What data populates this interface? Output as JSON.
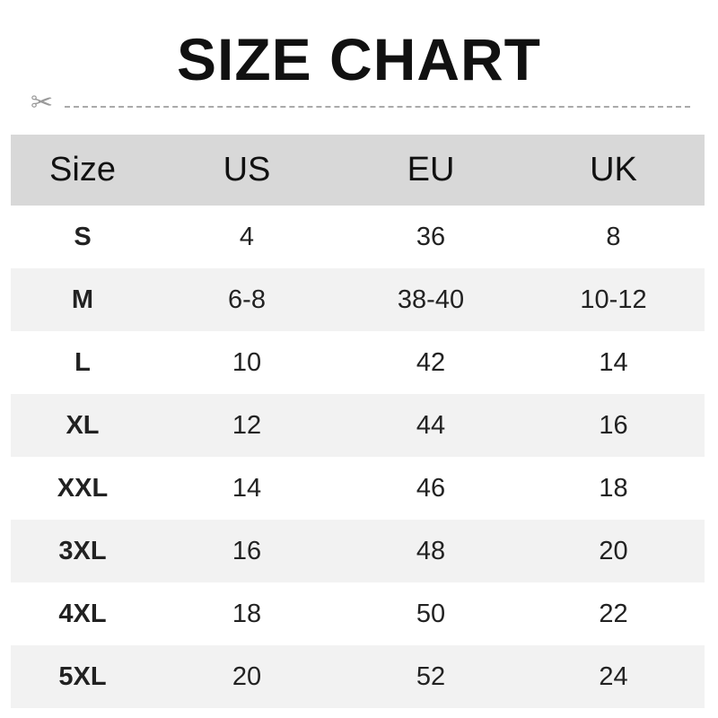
{
  "title": "SIZE CHART",
  "cut_line_icon": "scissors-icon",
  "colors": {
    "header_bg": "#d8d8d8",
    "alt_row_bg": "#f2f2f2",
    "dash": "#aaaaaa"
  },
  "table": {
    "headers": [
      "Size",
      "US",
      "EU",
      "UK"
    ],
    "rows": [
      [
        "S",
        "4",
        "36",
        "8"
      ],
      [
        "M",
        "6-8",
        "38-40",
        "10-12"
      ],
      [
        "L",
        "10",
        "42",
        "14"
      ],
      [
        "XL",
        "12",
        "44",
        "16"
      ],
      [
        "XXL",
        "14",
        "46",
        "18"
      ],
      [
        "3XL",
        "16",
        "48",
        "20"
      ],
      [
        "4XL",
        "18",
        "50",
        "22"
      ],
      [
        "5XL",
        "20",
        "52",
        "24"
      ]
    ]
  }
}
